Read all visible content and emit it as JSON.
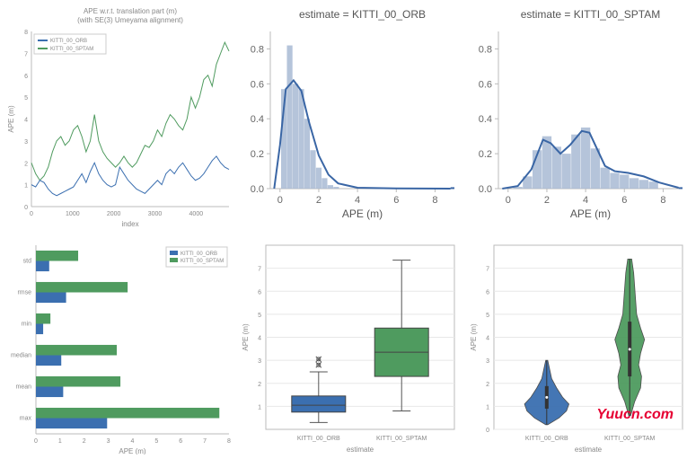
{
  "colors": {
    "orb": "#3b6fb0",
    "sptam": "#4f9b5f",
    "hist_fill": "#a8bad3",
    "kde_line": "#3a66a5",
    "bg": "#ffffff",
    "grid": "#e8e8e8",
    "axis": "#bbbbbb",
    "tick_text": "#888888",
    "title_text": "#888888",
    "watermark": "#e60033"
  },
  "panel1": {
    "title_line1": "APE w.r.t. translation part (m)",
    "title_line2": "(with SE(3) Umeyama alignment)",
    "xlabel": "index",
    "ylabel": "APE (m)",
    "xlim": [
      0,
      4800
    ],
    "ylim": [
      0,
      8
    ],
    "xticks": [
      0,
      1000,
      2000,
      3000,
      4000
    ],
    "yticks": [
      0,
      1,
      2,
      3,
      4,
      5,
      6,
      7,
      8
    ],
    "orb": [
      1.0,
      0.9,
      1.2,
      1.1,
      0.8,
      0.6,
      0.5,
      0.6,
      0.7,
      0.8,
      0.9,
      1.2,
      1.5,
      1.1,
      1.6,
      2.0,
      1.5,
      1.2,
      1.0,
      0.9,
      1.0,
      1.8,
      1.5,
      1.2,
      1.0,
      0.8,
      0.7,
      0.6,
      0.8,
      1.0,
      1.2,
      1.0,
      1.5,
      1.7,
      1.5,
      1.8,
      2.0,
      1.7,
      1.4,
      1.2,
      1.3,
      1.5,
      1.8,
      2.1,
      2.3,
      2.0,
      1.8,
      1.7
    ],
    "sptam": [
      2.0,
      1.5,
      1.2,
      1.4,
      1.8,
      2.5,
      3.0,
      3.2,
      2.8,
      3.0,
      3.5,
      3.7,
      3.2,
      2.5,
      3.0,
      4.2,
      3.0,
      2.5,
      2.2,
      2.0,
      1.8,
      2.0,
      2.3,
      2.0,
      1.8,
      2.0,
      2.4,
      2.8,
      2.7,
      3.0,
      3.5,
      3.2,
      3.8,
      4.2,
      4.0,
      3.7,
      3.5,
      4.0,
      5.0,
      4.5,
      5.0,
      5.8,
      6.0,
      5.5,
      6.5,
      7.0,
      7.5,
      7.1
    ],
    "legend": {
      "orb": "KITTI_00_ORB",
      "sptam": "KITTI_00_SPTAM"
    }
  },
  "panel2": {
    "title": "estimate = KITTI_00_ORB",
    "xlabel": "APE (m)",
    "xlim": [
      -0.5,
      9
    ],
    "ylim": [
      0,
      0.9
    ],
    "xticks": [
      0,
      2,
      4,
      6,
      8
    ],
    "yticks": [
      0.0,
      0.2,
      0.4,
      0.6,
      0.8
    ],
    "bins": [
      [
        0.2,
        0.57
      ],
      [
        0.5,
        0.82
      ],
      [
        0.8,
        0.6
      ],
      [
        1.1,
        0.57
      ],
      [
        1.4,
        0.4
      ],
      [
        1.7,
        0.22
      ],
      [
        2.0,
        0.12
      ],
      [
        2.3,
        0.06
      ],
      [
        2.6,
        0.02
      ],
      [
        2.9,
        0.01
      ]
    ],
    "kde": [
      [
        -0.3,
        0.0
      ],
      [
        0.0,
        0.25
      ],
      [
        0.3,
        0.57
      ],
      [
        0.7,
        0.62
      ],
      [
        1.1,
        0.56
      ],
      [
        1.5,
        0.38
      ],
      [
        2.0,
        0.19
      ],
      [
        2.5,
        0.08
      ],
      [
        3.0,
        0.03
      ],
      [
        4.0,
        0.005
      ],
      [
        6.0,
        0.001
      ],
      [
        8.8,
        0.0
      ]
    ]
  },
  "panel3": {
    "title": "estimate = KITTI_00_SPTAM",
    "xlabel": "APE (m)",
    "xlim": [
      -0.5,
      9
    ],
    "ylim": [
      0,
      0.9
    ],
    "xticks": [
      0,
      2,
      4,
      6,
      8
    ],
    "yticks": [
      0.0,
      0.2,
      0.4,
      0.6,
      0.8
    ],
    "bins": [
      [
        0.5,
        0.01
      ],
      [
        1.0,
        0.07
      ],
      [
        1.5,
        0.22
      ],
      [
        2.0,
        0.3
      ],
      [
        2.5,
        0.24
      ],
      [
        3.0,
        0.2
      ],
      [
        3.5,
        0.31
      ],
      [
        4.0,
        0.35
      ],
      [
        4.5,
        0.23
      ],
      [
        5.0,
        0.12
      ],
      [
        5.5,
        0.09
      ],
      [
        6.0,
        0.08
      ],
      [
        6.5,
        0.06
      ],
      [
        7.0,
        0.05
      ],
      [
        7.5,
        0.04
      ]
    ],
    "kde": [
      [
        -0.3,
        0.0
      ],
      [
        0.5,
        0.015
      ],
      [
        1.2,
        0.11
      ],
      [
        1.8,
        0.28
      ],
      [
        2.2,
        0.26
      ],
      [
        2.7,
        0.2
      ],
      [
        3.2,
        0.25
      ],
      [
        3.8,
        0.33
      ],
      [
        4.2,
        0.32
      ],
      [
        5.0,
        0.13
      ],
      [
        5.5,
        0.1
      ],
      [
        6.2,
        0.09
      ],
      [
        7.0,
        0.07
      ],
      [
        7.8,
        0.035
      ],
      [
        8.8,
        0.005
      ]
    ]
  },
  "panel4": {
    "xlabel": "APE (m)",
    "xlim": [
      0,
      8
    ],
    "xticks": [
      0,
      1,
      2,
      3,
      4,
      5,
      6,
      7,
      8
    ],
    "categories": [
      "std",
      "rmse",
      "min",
      "median",
      "mean",
      "max"
    ],
    "orb_vals": [
      0.55,
      1.25,
      0.3,
      1.05,
      1.13,
      2.95
    ],
    "sptam_vals": [
      1.75,
      3.8,
      0.6,
      3.35,
      3.5,
      7.6
    ],
    "legend": {
      "orb": "KITTI_00_ORB",
      "sptam": "KITTI_00_SPTAM"
    }
  },
  "panel5": {
    "xlabel": "estimate",
    "ylabel": "APE (m)",
    "ylim": [
      0,
      8
    ],
    "yticks": [
      1,
      2,
      3,
      4,
      5,
      6,
      7
    ],
    "cat_labels": [
      "KITTI_00_ORB",
      "KITTI_00_SPTAM"
    ],
    "orb_box": {
      "q1": 0.75,
      "med": 1.05,
      "q3": 1.45,
      "lo": 0.3,
      "hi": 2.5,
      "outliers": [
        2.8,
        3.05
      ]
    },
    "sptam_box": {
      "q1": 2.3,
      "med": 3.35,
      "q3": 4.4,
      "lo": 0.8,
      "hi": 7.35,
      "outliers": []
    }
  },
  "panel6": {
    "xlabel": "estimate",
    "ylabel": "APE (m)",
    "ylim": [
      0,
      8
    ],
    "yticks": [
      0,
      1,
      2,
      3,
      4,
      5,
      6,
      7
    ],
    "cat_labels": [
      "KITTI_00_ORB",
      "KITTI_00_SPTAM"
    ],
    "orb_violin": [
      [
        0.2,
        0.02
      ],
      [
        0.5,
        0.25
      ],
      [
        0.8,
        0.4
      ],
      [
        1.1,
        0.45
      ],
      [
        1.4,
        0.32
      ],
      [
        1.8,
        0.2
      ],
      [
        2.2,
        0.1
      ],
      [
        2.6,
        0.06
      ],
      [
        3.0,
        0.02
      ]
    ],
    "sptam_violin": [
      [
        0.6,
        0.02
      ],
      [
        1.2,
        0.1
      ],
      [
        1.8,
        0.22
      ],
      [
        2.3,
        0.24
      ],
      [
        2.8,
        0.18
      ],
      [
        3.3,
        0.22
      ],
      [
        3.9,
        0.3
      ],
      [
        4.4,
        0.22
      ],
      [
        5.0,
        0.14
      ],
      [
        5.6,
        0.12
      ],
      [
        6.2,
        0.1
      ],
      [
        6.8,
        0.08
      ],
      [
        7.4,
        0.04
      ]
    ]
  },
  "watermark": "Yuucn.com"
}
